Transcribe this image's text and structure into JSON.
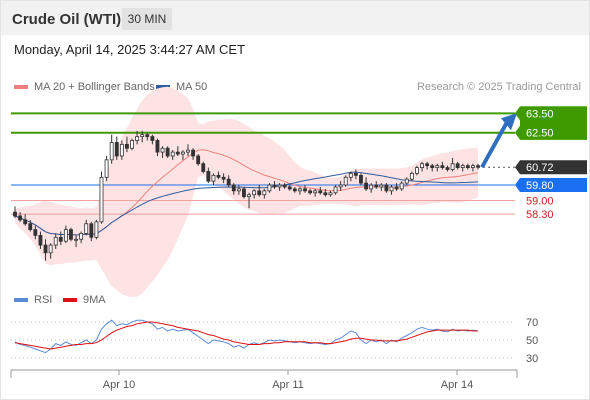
{
  "header": {
    "title": "Crude Oil (WTI)",
    "timeframe": "30 MIN"
  },
  "datetime": "Monday, April 14, 2025 3:44:27 AM CET",
  "legend": {
    "ma20_label": "MA 20 + Bollinger Bands",
    "ma50_label": "MA 50",
    "rsi_label": "RSI",
    "ma9_label": "9MA"
  },
  "credit": "Research © 2025 Trading Central",
  "colors": {
    "ma20": "#f08080",
    "ma50": "#2e5c9e",
    "band_fill": "#fde3e3",
    "resistance": "#3f9a00",
    "current_price": "#333333",
    "pivot": "#1a6ff0",
    "support": "#cc2222",
    "rsi": "#5b8ad8",
    "ma9": "#dd1111",
    "arrow": "#2e6ebf"
  },
  "chart_data": {
    "type": "candlestick",
    "x_ticks": [
      "Apr 10",
      "Apr 11",
      "Apr 14"
    ],
    "price_levels": [
      {
        "value": 63.5,
        "label": "63.50",
        "kind": "resistance"
      },
      {
        "value": 62.5,
        "label": "62.50",
        "kind": "resistance"
      },
      {
        "value": 60.72,
        "label": "60.72",
        "kind": "current"
      },
      {
        "value": 59.8,
        "label": "59.80",
        "kind": "pivot"
      },
      {
        "value": 59.0,
        "label": "59.00",
        "kind": "support"
      },
      {
        "value": 58.3,
        "label": "58.30",
        "kind": "support"
      }
    ],
    "price_range": [
      55.0,
      64.5
    ],
    "ohlc": [
      [
        58.4,
        58.7,
        58.1,
        58.2
      ],
      [
        58.2,
        58.4,
        57.9,
        58.0
      ],
      [
        58.0,
        58.3,
        57.7,
        57.8
      ],
      [
        57.8,
        58.0,
        57.4,
        57.5
      ],
      [
        57.5,
        57.7,
        57.0,
        57.2
      ],
      [
        57.2,
        57.4,
        56.5,
        56.7
      ],
      [
        56.7,
        57.0,
        55.9,
        56.3
      ],
      [
        56.3,
        56.8,
        56.0,
        56.7
      ],
      [
        56.7,
        57.3,
        56.5,
        57.1
      ],
      [
        57.1,
        57.4,
        56.7,
        56.9
      ],
      [
        56.9,
        57.7,
        56.8,
        57.5
      ],
      [
        57.5,
        57.6,
        56.9,
        57.0
      ],
      [
        57.0,
        57.2,
        56.6,
        57.0
      ],
      [
        57.0,
        57.4,
        56.8,
        57.3
      ],
      [
        57.3,
        58.0,
        57.2,
        57.8
      ],
      [
        57.8,
        57.9,
        56.9,
        57.1
      ],
      [
        57.1,
        58.0,
        57.0,
        57.9
      ],
      [
        57.9,
        60.5,
        57.8,
        60.2
      ],
      [
        60.2,
        61.3,
        60.0,
        61.1
      ],
      [
        61.1,
        62.4,
        60.9,
        62.0
      ],
      [
        62.0,
        62.3,
        61.1,
        61.3
      ],
      [
        61.3,
        62.1,
        61.1,
        61.9
      ],
      [
        61.9,
        62.3,
        61.5,
        61.7
      ],
      [
        61.7,
        62.2,
        61.6,
        62.1
      ],
      [
        62.1,
        62.6,
        61.9,
        62.3
      ],
      [
        62.3,
        62.6,
        62.0,
        62.4
      ],
      [
        62.4,
        62.5,
        62.1,
        62.3
      ],
      [
        62.3,
        62.4,
        61.9,
        62.1
      ],
      [
        62.1,
        62.2,
        61.3,
        61.5
      ],
      [
        61.5,
        61.8,
        61.2,
        61.7
      ],
      [
        61.7,
        61.8,
        61.2,
        61.3
      ],
      [
        61.3,
        61.6,
        61.1,
        61.5
      ],
      [
        61.5,
        61.8,
        61.3,
        61.4
      ],
      [
        61.4,
        61.6,
        61.1,
        61.5
      ],
      [
        61.5,
        61.9,
        61.3,
        61.6
      ],
      [
        61.6,
        61.7,
        61.1,
        61.3
      ],
      [
        61.3,
        61.4,
        60.8,
        60.9
      ],
      [
        60.9,
        61.0,
        60.4,
        60.5
      ],
      [
        60.5,
        60.7,
        59.9,
        60.0
      ],
      [
        60.0,
        60.4,
        59.8,
        60.3
      ],
      [
        60.3,
        60.5,
        60.1,
        60.2
      ],
      [
        60.2,
        60.4,
        59.9,
        60.1
      ],
      [
        60.1,
        60.3,
        59.7,
        59.8
      ],
      [
        59.8,
        59.9,
        59.3,
        59.5
      ],
      [
        59.5,
        59.8,
        59.3,
        59.6
      ],
      [
        59.6,
        59.7,
        59.1,
        59.2
      ],
      [
        59.2,
        59.4,
        58.6,
        59.3
      ],
      [
        59.3,
        59.6,
        59.1,
        59.5
      ],
      [
        59.5,
        59.8,
        59.2,
        59.3
      ],
      [
        59.3,
        59.6,
        59.1,
        59.5
      ],
      [
        59.5,
        59.9,
        59.4,
        59.8
      ],
      [
        59.8,
        60.0,
        59.6,
        59.7
      ],
      [
        59.7,
        59.9,
        59.5,
        59.8
      ],
      [
        59.8,
        59.9,
        59.6,
        59.7
      ],
      [
        59.7,
        59.8,
        59.5,
        59.6
      ],
      [
        59.6,
        59.7,
        59.4,
        59.5
      ],
      [
        59.5,
        59.7,
        59.3,
        59.6
      ],
      [
        59.6,
        59.8,
        59.4,
        59.5
      ],
      [
        59.5,
        59.6,
        59.3,
        59.4
      ],
      [
        59.4,
        59.6,
        59.2,
        59.5
      ],
      [
        59.5,
        59.7,
        59.3,
        59.4
      ],
      [
        59.4,
        59.6,
        59.2,
        59.3
      ],
      [
        59.3,
        59.5,
        59.2,
        59.4
      ],
      [
        59.4,
        59.8,
        59.3,
        59.7
      ],
      [
        59.7,
        60.0,
        59.5,
        59.8
      ],
      [
        59.8,
        60.3,
        59.7,
        60.2
      ],
      [
        60.2,
        60.5,
        60.0,
        60.4
      ],
      [
        60.4,
        60.6,
        60.1,
        60.3
      ],
      [
        60.3,
        60.4,
        59.8,
        59.9
      ],
      [
        59.9,
        60.2,
        59.5,
        59.6
      ],
      [
        59.6,
        59.9,
        59.4,
        59.8
      ],
      [
        59.8,
        60.0,
        59.6,
        59.7
      ],
      [
        59.7,
        59.9,
        59.5,
        59.8
      ],
      [
        59.8,
        59.9,
        59.4,
        59.5
      ],
      [
        59.5,
        59.8,
        59.3,
        59.7
      ],
      [
        59.7,
        59.9,
        59.5,
        59.6
      ],
      [
        59.6,
        60.0,
        59.5,
        59.9
      ],
      [
        59.9,
        60.2,
        59.8,
        60.1
      ],
      [
        60.1,
        60.5,
        60.0,
        60.4
      ],
      [
        60.4,
        60.8,
        60.3,
        60.7
      ],
      [
        60.7,
        61.0,
        60.5,
        60.9
      ],
      [
        60.9,
        61.0,
        60.6,
        60.8
      ],
      [
        60.8,
        60.9,
        60.5,
        60.7
      ],
      [
        60.7,
        60.9,
        60.5,
        60.8
      ],
      [
        60.8,
        61.0,
        60.6,
        60.7
      ],
      [
        60.7,
        60.8,
        60.5,
        60.6
      ],
      [
        60.6,
        61.2,
        60.5,
        60.9
      ],
      [
        60.9,
        61.0,
        60.6,
        60.7
      ],
      [
        60.7,
        60.9,
        60.5,
        60.8
      ],
      [
        60.8,
        60.9,
        60.6,
        60.7
      ],
      [
        60.7,
        60.9,
        60.5,
        60.8
      ],
      [
        60.8,
        60.9,
        60.6,
        60.72
      ]
    ],
    "rsi_levels": [
      70,
      50,
      30
    ],
    "rsi": [
      48,
      45,
      44,
      42,
      40,
      38,
      36,
      40,
      46,
      44,
      48,
      45,
      44,
      47,
      50,
      46,
      50,
      62,
      68,
      72,
      66,
      68,
      67,
      70,
      72,
      72,
      70,
      68,
      62,
      64,
      60,
      62,
      60,
      61,
      62,
      58,
      54,
      50,
      46,
      50,
      49,
      48,
      46,
      42,
      44,
      41,
      45,
      47,
      45,
      47,
      50,
      49,
      50,
      49,
      48,
      47,
      48,
      47,
      46,
      47,
      46,
      45,
      46,
      50,
      52,
      56,
      60,
      58,
      50,
      46,
      50,
      48,
      50,
      46,
      50,
      48,
      52,
      55,
      58,
      62,
      64,
      62,
      61,
      62,
      60,
      59,
      62,
      60,
      61,
      60,
      61,
      60
    ],
    "ma9": [
      47,
      46,
      45,
      44,
      43,
      42,
      41,
      40,
      41,
      42,
      43,
      44,
      45,
      45,
      46,
      46,
      47,
      50,
      54,
      58,
      61,
      63,
      65,
      66,
      68,
      69,
      70,
      70,
      69,
      68,
      67,
      66,
      64,
      63,
      62,
      61,
      60,
      58,
      56,
      55,
      53,
      51,
      50,
      48,
      47,
      46,
      45,
      45,
      45,
      46,
      46,
      47,
      47,
      48,
      48,
      48,
      48,
      48,
      47,
      47,
      47,
      46,
      46,
      47,
      48,
      49,
      51,
      52,
      52,
      51,
      50,
      50,
      49,
      49,
      49,
      49,
      50,
      51,
      53,
      55,
      57,
      59,
      60,
      61,
      61,
      61,
      61,
      61,
      61,
      61,
      60,
      60
    ]
  }
}
